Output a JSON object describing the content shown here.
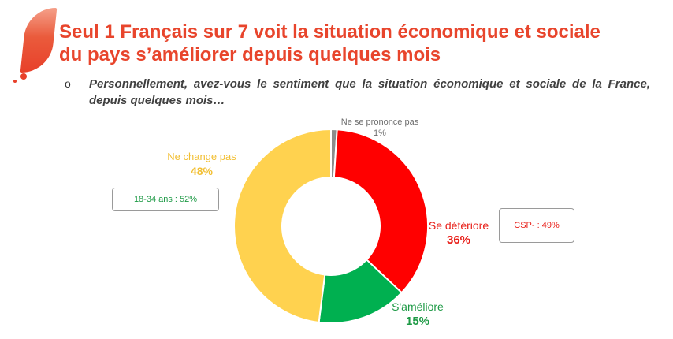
{
  "title": "Seul 1 Français sur 7 voit la situation économique et sociale du pays s’améliorer depuis quelques mois",
  "bullet": "o",
  "question": "Personnellement, avez-vous le sentiment que la situation économique et sociale de la France, depuis quelques mois…",
  "chart_data": {
    "type": "pie",
    "donut": true,
    "title": "",
    "slices": [
      {
        "label": "Ne se prononce pas",
        "value": 1,
        "value_label": "1%",
        "color": "#8c8c8c"
      },
      {
        "label": "Se détériore",
        "value": 36,
        "value_label": "36%",
        "color": "#ff0000"
      },
      {
        "label": "S'améliore",
        "value": 15,
        "value_label": "15%",
        "color": "#00b050"
      },
      {
        "label": "Ne change pas",
        "value": 48,
        "value_label": "48%",
        "color": "#ffd24f"
      }
    ],
    "annotations": [
      {
        "text": "18-34 ans : 52%",
        "refers_to": "Ne change pas",
        "color": "#1e9a46"
      },
      {
        "text": "CSP-  : 49%",
        "refers_to": "Se détériore",
        "color": "#e8201a"
      }
    ]
  }
}
